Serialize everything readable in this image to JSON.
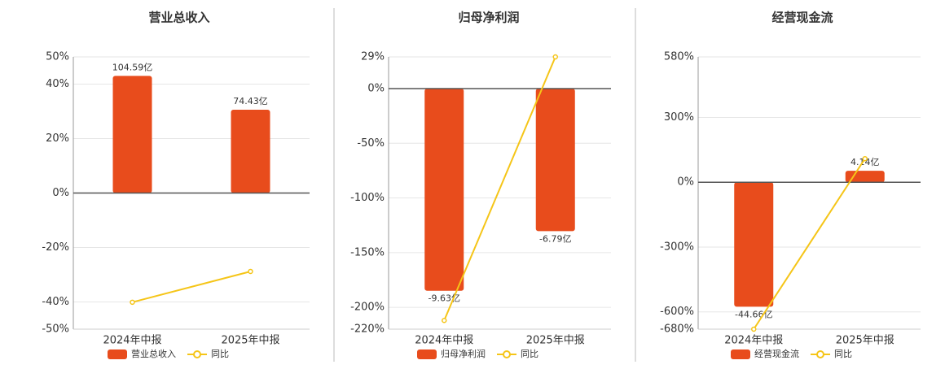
{
  "chart_data": [
    {
      "type": "bar",
      "title": "营业总收入",
      "categories": [
        "2024年中报",
        "2025年中报"
      ],
      "series": [
        {
          "name": "营业总收入",
          "color": "#e84c1c",
          "axis": "y2",
          "values": [
            104.59,
            74.43
          ],
          "value_labels": [
            "104.59亿",
            "74.43亿"
          ]
        },
        {
          "name": "同比",
          "color": "#f5c518",
          "type": "line",
          "values": [
            -40.1,
            -28.8
          ]
        }
      ],
      "ylim": [
        -50,
        50
      ],
      "yticks": [
        {
          "value": -50,
          "label": "-50%"
        },
        {
          "value": -40,
          "label": "-40%"
        },
        {
          "value": -20,
          "label": "-20%"
        },
        {
          "value": 0,
          "label": "0%"
        },
        {
          "value": 20,
          "label": "20%"
        },
        {
          "value": 40,
          "label": "40%"
        },
        {
          "value": 50,
          "label": "50%"
        }
      ],
      "y2lim": [
        -121.6,
        121.6
      ],
      "grid": true
    },
    {
      "type": "bar",
      "title": "归母净利润",
      "categories": [
        "2024年中报",
        "2025年中报"
      ],
      "series": [
        {
          "name": "归母净利润",
          "color": "#e84c1c",
          "axis": "y2",
          "values": [
            -9.63,
            -6.79
          ],
          "value_labels": [
            "-9.63亿",
            "-6.79亿"
          ]
        },
        {
          "name": "同比",
          "color": "#f5c518",
          "type": "line",
          "values": [
            -212,
            29
          ]
        }
      ],
      "ylim": [
        -220,
        29
      ],
      "yticks": [
        {
          "value": -220,
          "label": "-220%"
        },
        {
          "value": -200,
          "label": "-200%"
        },
        {
          "value": -150,
          "label": "-150%"
        },
        {
          "value": -100,
          "label": "-100%"
        },
        {
          "value": -50,
          "label": "-50%"
        },
        {
          "value": 0,
          "label": "0%"
        },
        {
          "value": 29,
          "label": "29%"
        }
      ],
      "y2lim": [
        -11.46,
        1.51
      ],
      "grid": true
    },
    {
      "type": "bar",
      "title": "经营现金流",
      "categories": [
        "2024年中报",
        "2025年中报"
      ],
      "series": [
        {
          "name": "经营现金流",
          "color": "#e84c1c",
          "axis": "y2",
          "values": [
            -44.66,
            4.14
          ],
          "value_labels": [
            "-44.66亿",
            "4.14亿"
          ]
        },
        {
          "name": "同比",
          "color": "#f5c518",
          "type": "line",
          "values": [
            -680,
            109
          ]
        }
      ],
      "ylim": [
        -680,
        580
      ],
      "yticks": [
        {
          "value": -680,
          "label": "-680%"
        },
        {
          "value": -600,
          "label": "-600%"
        },
        {
          "value": -300,
          "label": "-300%"
        },
        {
          "value": 0,
          "label": "0%"
        },
        {
          "value": 300,
          "label": "300%"
        },
        {
          "value": 580,
          "label": "580%"
        }
      ],
      "y2lim": [
        -52.7,
        45.0
      ],
      "grid": true
    }
  ]
}
